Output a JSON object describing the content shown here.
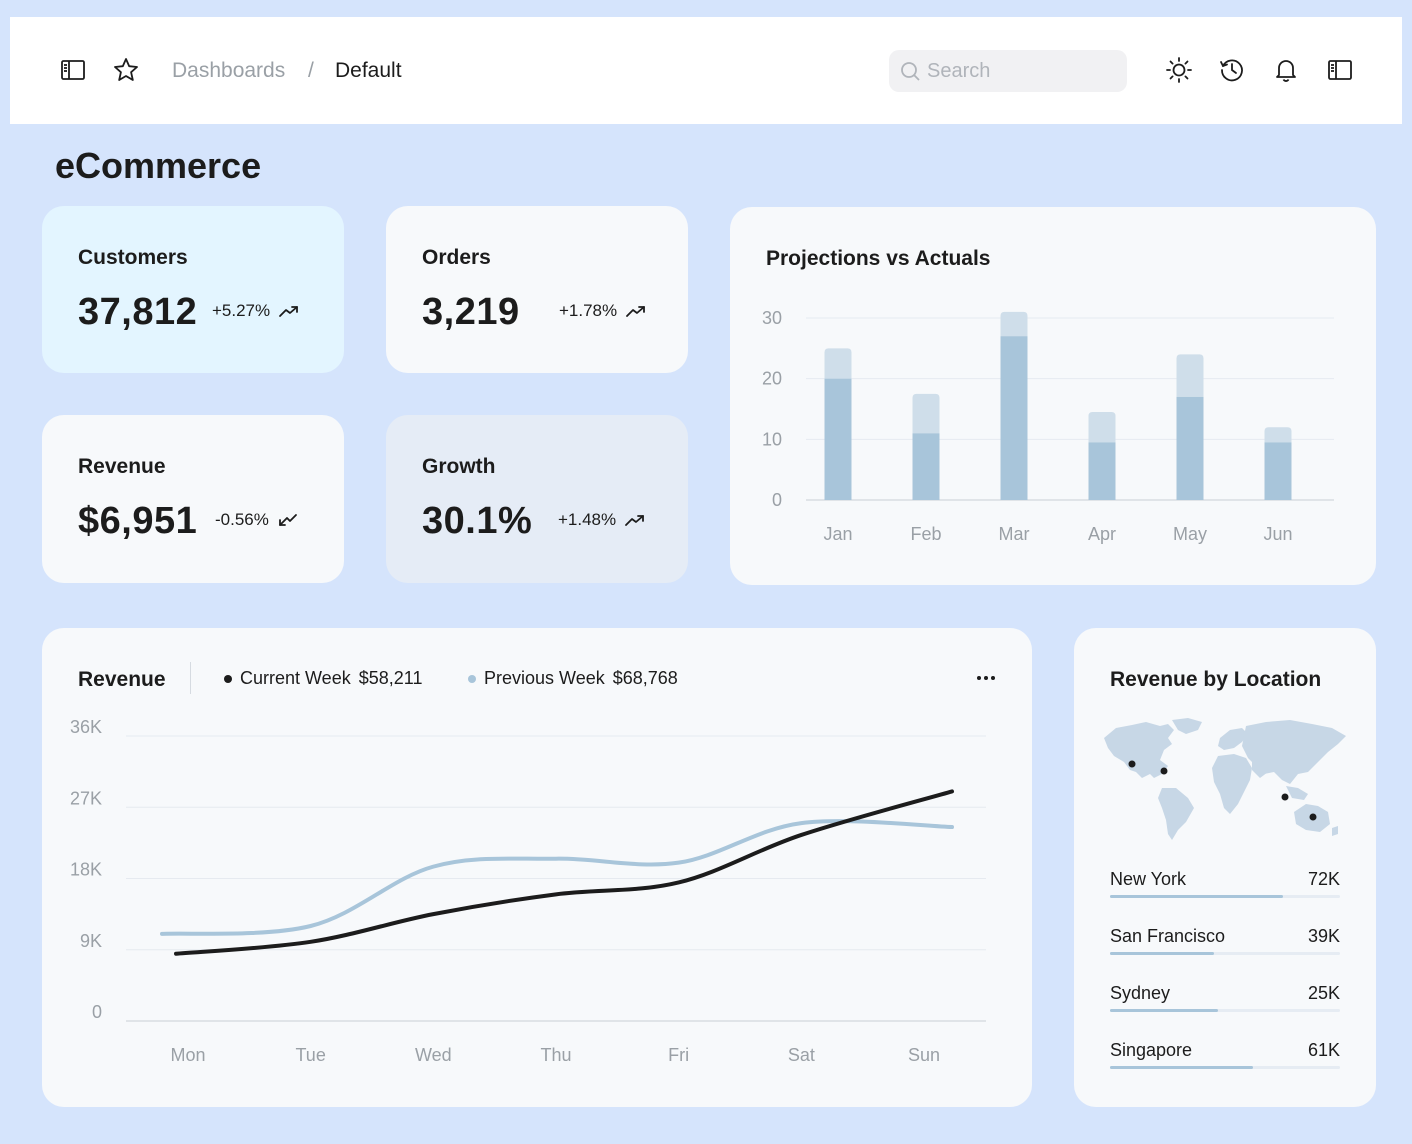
{
  "header": {
    "breadcrumb": [
      "Dashboards",
      "/",
      "Default"
    ],
    "search_placeholder": "Search",
    "icons": [
      "sidebar-toggle-icon",
      "star-icon",
      "sun-icon",
      "history-icon",
      "bell-icon",
      "panel-right-icon"
    ]
  },
  "page": {
    "title": "eCommerce"
  },
  "stats": [
    {
      "label": "Customers",
      "value": "37,812",
      "change": "+5.27%",
      "trend": "up",
      "bg": "#e3f5ff"
    },
    {
      "label": "Orders",
      "value": "3,219",
      "change": "+1.78%",
      "trend": "up",
      "bg": "#f7f9fb"
    },
    {
      "label": "Revenue",
      "value": "$6,951",
      "change": "-0.56%",
      "trend": "down",
      "bg": "#f7f9fb"
    },
    {
      "label": "Growth",
      "value": "30.1%",
      "change": "+1.48%",
      "trend": "up",
      "bg": "#e5ecf6"
    }
  ],
  "projections": {
    "title": "Projections vs Actuals",
    "chart_data": {
      "type": "bar",
      "stacked": true,
      "categories": [
        "Jan",
        "Feb",
        "Mar",
        "Apr",
        "May",
        "Jun"
      ],
      "series": [
        {
          "values": [
            20,
            11,
            27,
            9.5,
            17,
            9.5
          ]
        },
        {
          "values": [
            5,
            6.5,
            4,
            5,
            7,
            2.5
          ]
        }
      ],
      "y_ticks": [
        "0",
        "10",
        "20",
        "30"
      ],
      "ylim": [
        0,
        30
      ],
      "grid": true,
      "colors": [
        "#a8c5da",
        "#cfdeea"
      ]
    }
  },
  "revenue": {
    "title": "Revenue",
    "legend": [
      {
        "label": "Current Week",
        "amount": "$58,211",
        "color": "#1c1c1c"
      },
      {
        "label": "Previous Week",
        "amount": "$68,768",
        "color": "#a8c5da"
      }
    ],
    "chart_data": {
      "type": "line",
      "categories": [
        "Mon",
        "Tue",
        "Wed",
        "Thu",
        "Fri",
        "Sat",
        "Sun"
      ],
      "y_ticks": [
        "0",
        "9K",
        "18K",
        "27K",
        "36K"
      ],
      "ylim": [
        0,
        36000
      ],
      "series": [
        {
          "color": "#1c1c1c",
          "values": [
            8500,
            10000,
            13500,
            16000,
            17500,
            23500,
            29000
          ]
        },
        {
          "color": "#a8c5da",
          "values": [
            11000,
            12000,
            19500,
            20500,
            20000,
            25000,
            24500
          ]
        }
      ],
      "grid": true
    }
  },
  "location": {
    "title": "Revenue by Location",
    "items": [
      {
        "city": "New York",
        "value": "72K",
        "share": 0.75
      },
      {
        "city": "San Francisco",
        "value": "39K",
        "share": 0.45
      },
      {
        "city": "Sydney",
        "value": "25K",
        "share": 0.47
      },
      {
        "city": "Singapore",
        "value": "61K",
        "share": 0.62
      }
    ],
    "colors": {
      "map": "#c7d7e6",
      "pin": "#1c1c1c",
      "bar": "#a8c5da"
    }
  }
}
